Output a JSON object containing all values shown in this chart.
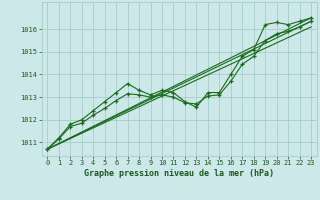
{
  "xlabel": "Graphe pression niveau de la mer (hPa)",
  "bg_color": "#cce8e8",
  "grid_color": "#a8cccc",
  "line_color": "#1a6b1a",
  "marker_color": "#1a6b1a",
  "text_color": "#1a5a1a",
  "ylim": [
    1010.4,
    1017.2
  ],
  "xlim": [
    -0.5,
    23.5
  ],
  "yticks": [
    1011,
    1012,
    1013,
    1014,
    1015,
    1016
  ],
  "xticks": [
    0,
    1,
    2,
    3,
    4,
    5,
    6,
    7,
    8,
    9,
    10,
    11,
    12,
    13,
    14,
    15,
    16,
    17,
    18,
    19,
    20,
    21,
    22,
    23
  ],
  "series1_x": [
    0,
    1,
    2,
    3,
    4,
    5,
    6,
    7,
    8,
    9,
    10,
    11,
    12,
    13,
    14,
    15,
    16,
    17,
    18,
    19,
    20,
    21,
    22,
    23
  ],
  "series1_y": [
    1010.7,
    1011.2,
    1011.8,
    1012.0,
    1012.4,
    1012.8,
    1013.2,
    1013.6,
    1013.3,
    1013.1,
    1013.3,
    1013.2,
    1012.8,
    1012.55,
    1013.2,
    1013.2,
    1014.0,
    1014.8,
    1015.1,
    1016.2,
    1016.3,
    1016.2,
    1016.35,
    1016.5
  ],
  "series2_x": [
    0,
    1,
    2,
    3,
    4,
    5,
    6,
    7,
    8,
    9,
    10,
    11,
    12,
    13,
    14,
    15,
    16,
    17,
    18,
    19,
    20,
    21,
    22,
    23
  ],
  "series2_y": [
    1010.7,
    1011.15,
    1011.7,
    1011.85,
    1012.2,
    1012.5,
    1012.85,
    1013.15,
    1013.1,
    1013.0,
    1013.1,
    1013.0,
    1012.75,
    1012.7,
    1013.05,
    1013.1,
    1013.7,
    1014.45,
    1014.8,
    1015.5,
    1015.8,
    1015.9,
    1016.1,
    1016.35
  ],
  "line1_x": [
    0,
    23
  ],
  "line1_y": [
    1010.7,
    1016.5
  ],
  "line2_x": [
    0,
    23
  ],
  "line2_y": [
    1010.7,
    1016.35
  ],
  "line3_x": [
    0,
    23
  ],
  "line3_y": [
    1010.7,
    1016.1
  ]
}
